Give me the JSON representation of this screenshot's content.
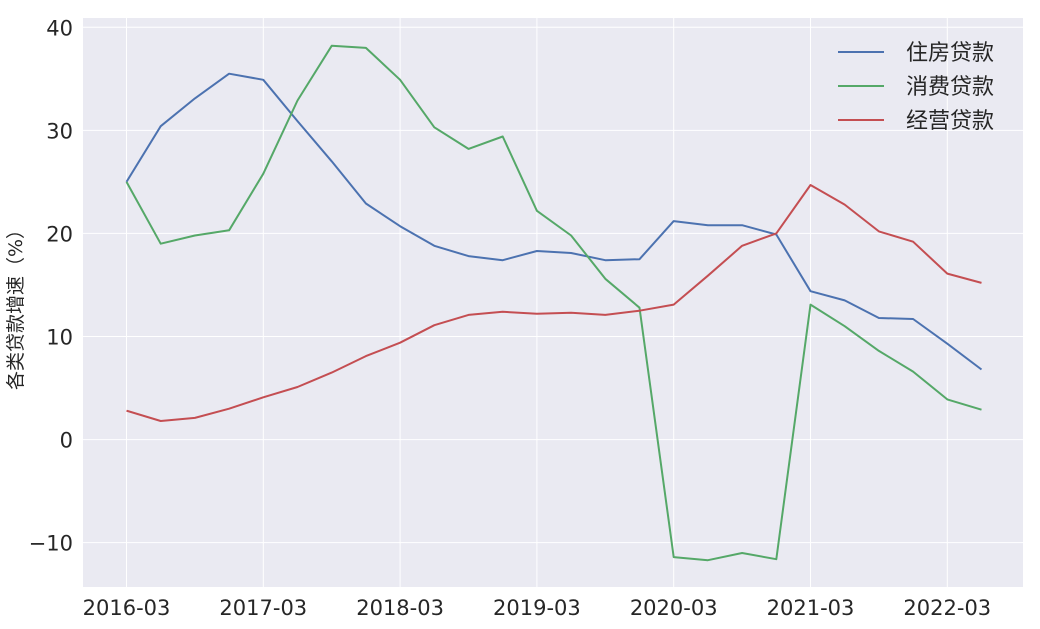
{
  "chart_data": {
    "type": "line",
    "title": "",
    "xlabel": "",
    "ylabel": "各类贷款增速（%）",
    "x": [
      "2016-03",
      "2016-06",
      "2016-09",
      "2016-12",
      "2017-03",
      "2017-06",
      "2017-09",
      "2017-12",
      "2018-03",
      "2018-06",
      "2018-09",
      "2018-12",
      "2019-03",
      "2019-06",
      "2019-09",
      "2019-12",
      "2020-03",
      "2020-06",
      "2020-09",
      "2020-12",
      "2021-03",
      "2021-06",
      "2021-09",
      "2021-12",
      "2022-03",
      "2022-06"
    ],
    "x_tick_labels": [
      "2016-03",
      "2017-03",
      "2018-03",
      "2019-03",
      "2020-03",
      "2021-03",
      "2022-03"
    ],
    "y_ticks": [
      -10,
      0,
      10,
      20,
      30,
      40
    ],
    "y_tick_labels": [
      "−10",
      "0",
      "10",
      "20",
      "30",
      "40"
    ],
    "ylim": [
      -14.3,
      40.9
    ],
    "grid": true,
    "legend_position": "top-right",
    "series": [
      {
        "name": "住房贷款",
        "color": "#4c72b0",
        "values": [
          25.0,
          30.4,
          33.1,
          35.5,
          34.9,
          30.9,
          27.0,
          22.9,
          20.7,
          18.8,
          17.8,
          17.4,
          18.3,
          18.1,
          17.4,
          17.5,
          21.2,
          20.8,
          20.8,
          19.9,
          14.4,
          13.5,
          11.8,
          11.7,
          9.3,
          6.8
        ]
      },
      {
        "name": "消费贷款",
        "color": "#55a868",
        "values": [
          25.0,
          19.0,
          19.8,
          20.3,
          25.8,
          32.9,
          38.2,
          38.0,
          34.9,
          30.3,
          28.2,
          29.4,
          22.2,
          19.8,
          15.6,
          12.8,
          -11.4,
          -11.7,
          -11.0,
          -11.6,
          13.1,
          11.0,
          8.6,
          6.6,
          3.9,
          2.9
        ]
      },
      {
        "name": "经营贷款",
        "color": "#c44e52",
        "values": [
          2.8,
          1.8,
          2.1,
          3.0,
          4.1,
          5.1,
          6.5,
          8.1,
          9.4,
          11.1,
          12.1,
          12.4,
          12.2,
          12.3,
          12.1,
          12.5,
          13.1,
          15.9,
          18.8,
          20.0,
          24.7,
          22.8,
          20.2,
          19.2,
          16.1,
          15.2
        ]
      }
    ]
  }
}
